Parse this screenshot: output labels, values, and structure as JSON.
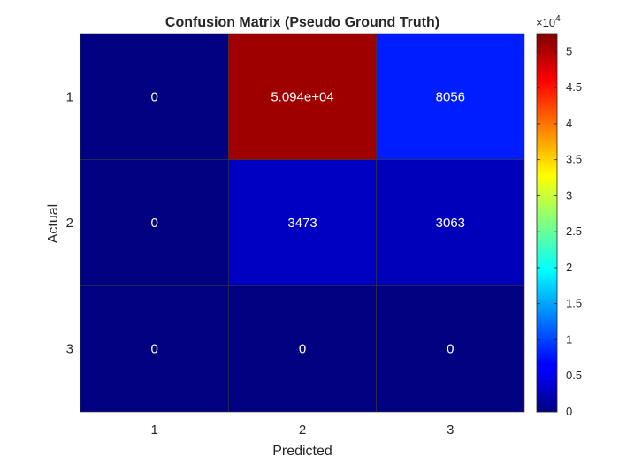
{
  "chart_data": {
    "type": "heatmap",
    "title": "Confusion Matrix (Pseudo Ground Truth)",
    "xlabel": "Predicted",
    "ylabel": "Actual",
    "x_categories": [
      "1",
      "2",
      "3"
    ],
    "y_categories": [
      "1",
      "2",
      "3"
    ],
    "values": [
      [
        0,
        50940,
        8056
      ],
      [
        0,
        3473,
        3063
      ],
      [
        0,
        0,
        0
      ]
    ],
    "cell_labels": [
      [
        "0",
        "5.094e+04",
        "8056"
      ],
      [
        "0",
        "3473",
        "3063"
      ],
      [
        "0",
        "0",
        "0"
      ]
    ],
    "colormap": "jet",
    "colorbar": {
      "range": [
        0,
        52500
      ],
      "exponent_label": "×10",
      "exponent_power": "4",
      "ticks": [
        0,
        5000,
        10000,
        15000,
        20000,
        25000,
        30000,
        35000,
        40000,
        45000,
        50000
      ],
      "tick_labels": [
        "0",
        "0.5",
        "1",
        "1.5",
        "2",
        "2.5",
        "3",
        "3.5",
        "4",
        "4.5",
        "5"
      ],
      "placement": "right"
    },
    "grid": false
  }
}
